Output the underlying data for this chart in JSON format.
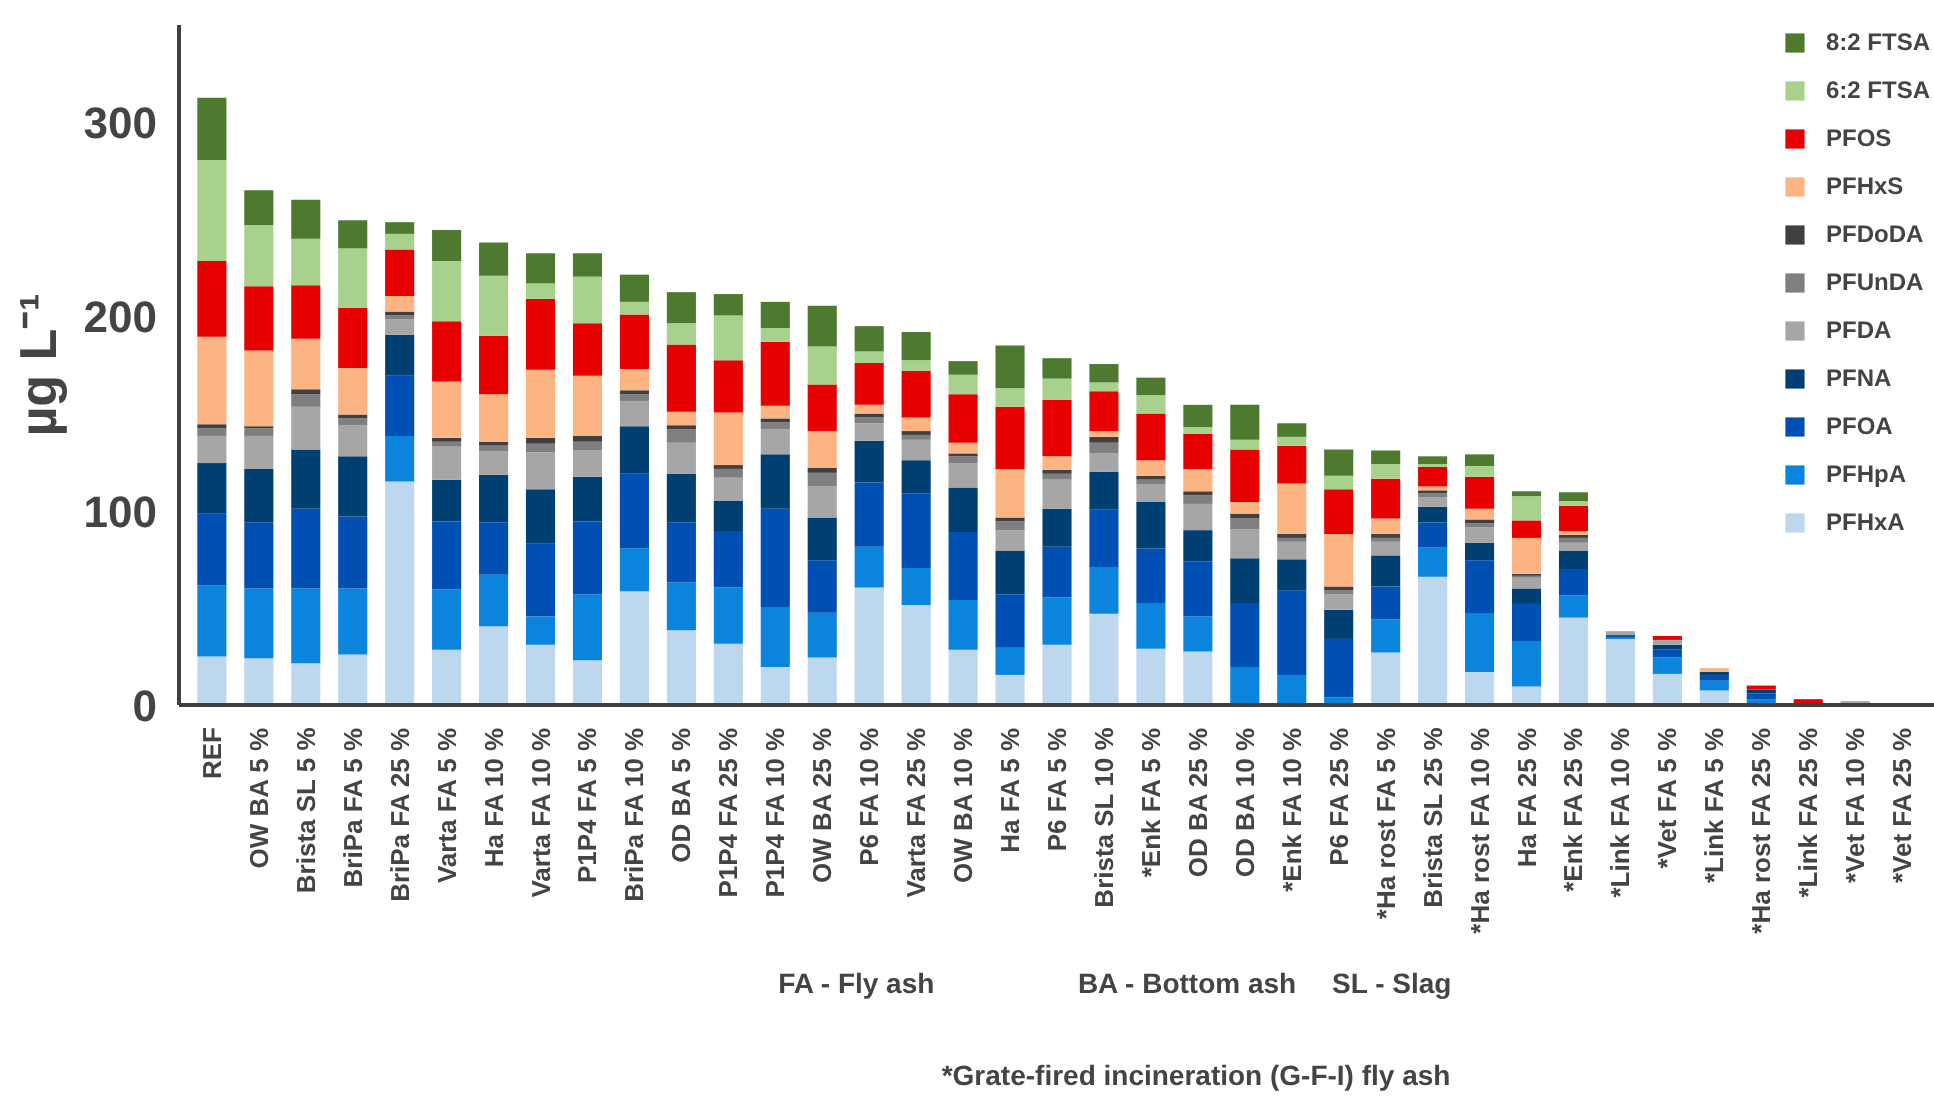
{
  "chart_data": {
    "type": "bar",
    "stacked": true,
    "ylabel": "µg L⁻¹",
    "categories": [
      "REF",
      "OW BA 5 %",
      "Brista SL 5 %",
      "BriPa FA 5 %",
      "BriPa FA 25 %",
      "Varta FA 5 %",
      "Ha FA 10 %",
      "Varta FA 10 %",
      "P1P4 FA 5 %",
      "BriPa FA 10 %",
      "OD BA 5 %",
      "P1P4 FA 25 %",
      "P1P4 FA 10 %",
      "OW BA 25 %",
      "P6 FA 10 %",
      "Varta FA 25 %",
      "OW BA 10 %",
      "Ha FA 5 %",
      "P6 FA 5 %",
      "Brista SL 10 %",
      "*Enk FA 5 %",
      "OD BA 25 %",
      "OD BA 10 %",
      "*Enk FA 10 %",
      "P6 FA 25 %",
      "*Ha rost FA 5 %",
      "Brista SL 25 %",
      "*Ha rost FA 10 %",
      "Ha FA 25 %",
      "*Enk FA 25 %",
      "*Link FA 10 %",
      "*Vet FA 5 %",
      "*Link FA 5 %",
      "*Ha rost FA 25 %",
      "*Link FA 25 %",
      "*Vet FA 10 %",
      "*Vet FA 25 %"
    ],
    "series": [
      {
        "name": "PFHxA",
        "color": "#bdd7ee",
        "values": [
          25,
          24,
          21.5,
          26,
          115,
          28.5,
          40.5,
          31,
          23,
          58.5,
          38.5,
          31.5,
          19.5,
          24.5,
          60.5,
          51.5,
          28.5,
          15.5,
          31,
          47,
          29,
          27.5,
          0,
          0,
          0,
          27,
          66,
          17,
          9.5,
          45,
          34,
          16,
          7.5,
          0,
          0,
          0,
          0
        ]
      },
      {
        "name": "PFHpA",
        "color": "#0b84de",
        "values": [
          36.5,
          36,
          38.5,
          34,
          23.5,
          31,
          26.5,
          14.5,
          34,
          22,
          24.5,
          29,
          31,
          23,
          21,
          19,
          25.5,
          14,
          24.5,
          24,
          23.5,
          18,
          19.5,
          15,
          4,
          17,
          15,
          30,
          23,
          11.5,
          1,
          8.5,
          5,
          3,
          0,
          0,
          0
        ]
      },
      {
        "name": "PFOA",
        "color": "#0050b4",
        "values": [
          37,
          34,
          41,
          37,
          31,
          35,
          27,
          37.5,
          37.5,
          38.5,
          31,
          29,
          50.5,
          27,
          33,
          38.5,
          35,
          27.5,
          26,
          29.5,
          28,
          28.5,
          33,
          44,
          30,
          17,
          13,
          27.5,
          19.5,
          13.5,
          1,
          4,
          2.5,
          3,
          0,
          0,
          0
        ]
      },
      {
        "name": "PFNA",
        "color": "#003f72",
        "values": [
          26,
          27.5,
          30.5,
          31,
          21,
          21.5,
          24.5,
          28,
          23,
          24.5,
          25,
          15.5,
          28,
          22,
          21.5,
          17,
          23,
          22.5,
          19.5,
          19.5,
          24,
          16,
          23,
          16,
          15,
          16,
          8,
          9,
          8,
          9.5,
          0,
          2.5,
          2,
          2,
          1,
          null,
          0
        ]
      },
      {
        "name": "PFDA",
        "color": "#a6a6a6",
        "values": [
          14,
          17,
          22,
          16,
          8,
          17,
          12,
          19,
          13.5,
          13,
          16,
          12,
          13,
          16,
          9,
          10.5,
          12.5,
          10.5,
          15,
          9.5,
          9,
          13.5,
          15,
          9,
          8,
          7,
          5,
          8,
          5.5,
          4,
          2,
          2.5,
          0,
          0,
          0,
          2,
          0
        ]
      },
      {
        "name": "PFUnDA",
        "color": "#7f7f7f",
        "values": [
          4,
          4,
          6.5,
          3.5,
          2,
          2.5,
          3,
          4.5,
          4.5,
          3.5,
          7,
          4.5,
          3.5,
          7,
          3,
          2.5,
          3.5,
          4.5,
          3,
          5.5,
          2.5,
          4.5,
          5.5,
          2,
          2,
          2,
          2,
          2,
          1,
          2.5,
          0,
          0,
          0,
          0,
          0,
          0,
          0
        ]
      },
      {
        "name": "PFDoDA",
        "color": "#404040",
        "values": [
          2,
          1,
          2.5,
          2,
          2,
          2,
          2,
          3,
          3,
          2,
          2,
          2,
          2,
          2.5,
          2,
          2,
          1.5,
          2,
          2,
          3,
          2,
          2,
          2.5,
          2,
          2,
          2,
          1.5,
          2,
          1,
          1.5,
          0,
          0,
          0,
          0,
          0,
          0,
          0
        ]
      },
      {
        "name": "PFHxS",
        "color": "#fbb482",
        "values": [
          45,
          39,
          26,
          24,
          8,
          29,
          24.5,
          35,
          31,
          11,
          7,
          27,
          6.5,
          19,
          4.5,
          7,
          5.5,
          25,
          7,
          3,
          8,
          11.5,
          6,
          26,
          27,
          8,
          2,
          5.5,
          18.5,
          2,
          0,
          0,
          2,
          0,
          0,
          0,
          0
        ]
      },
      {
        "name": "PFOS",
        "color": "#e60000",
        "values": [
          39,
          33,
          27.5,
          31,
          24,
          31,
          30,
          36.5,
          27,
          28,
          34.5,
          27,
          33,
          24,
          21.5,
          24,
          25,
          32,
          29,
          20.5,
          24,
          18,
          27,
          19.5,
          23,
          20.5,
          10,
          16.5,
          9,
          13,
          0,
          2,
          0,
          2,
          2,
          0,
          0
        ]
      },
      {
        "name": "6:2 FTSA",
        "color": "#a9d18e",
        "values": [
          52,
          31.5,
          24,
          30.5,
          8,
          31,
          31,
          8,
          24,
          6.5,
          11,
          23,
          7,
          19.5,
          6,
          5.5,
          10,
          9.5,
          11,
          4.5,
          9.5,
          3.5,
          5,
          4.5,
          7,
          7.5,
          1.5,
          5.5,
          12.5,
          2.5,
          0,
          0,
          0,
          0,
          0,
          0,
          0
        ]
      },
      {
        "name": "8:2 FTSA",
        "color": "#4e7a2f",
        "values": [
          32,
          18,
          20,
          14.5,
          6,
          16,
          17,
          15.5,
          12,
          14,
          16,
          11,
          13.5,
          21,
          13,
          14.5,
          7,
          22,
          10.5,
          9.5,
          9,
          11.5,
          18,
          7,
          13.5,
          7,
          4,
          6,
          2.5,
          4.5,
          0,
          0,
          0,
          0,
          0,
          0,
          0
        ]
      }
    ],
    "ylim": [
      0,
      350
    ],
    "yticks": [
      0,
      100,
      200,
      300
    ],
    "grid": false,
    "legend": "top right",
    "annotations": [
      "FA - Fly ash",
      "BA - Bottom ash",
      "SL - Slag",
      "*Grate-fired incineration (G-F-I) fly ash"
    ]
  }
}
